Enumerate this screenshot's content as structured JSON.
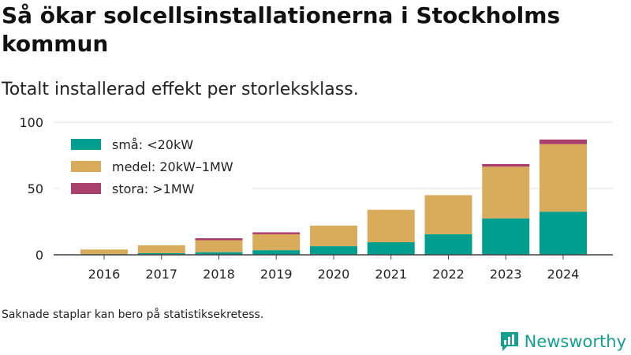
{
  "title": "Så ökar solcellsinstallationerna i Stockholms kommun",
  "subtitle": "Totalt installerad effekt per storleksklass.",
  "note": "Saknade staplar kan bero på statistiksekretess.",
  "brand": {
    "name": "Newsworthy",
    "color": "#14a08f"
  },
  "chart_data": {
    "type": "bar",
    "stacked": true,
    "categories": [
      "2016",
      "2017",
      "2018",
      "2019",
      "2020",
      "2021",
      "2022",
      "2023",
      "2024"
    ],
    "series": [
      {
        "name": "små: <20kW",
        "color": "#009e8f",
        "values": [
          0.5,
          1.2,
          2,
          3.5,
          6.5,
          9.5,
          15.5,
          27.5,
          32.5
        ]
      },
      {
        "name": "medel: 20kW–1MW",
        "color": "#d9ac5b",
        "values": [
          3.5,
          6,
          9,
          12,
          15.5,
          24.5,
          29.5,
          39,
          51
        ]
      },
      {
        "name": "stora: >1MW",
        "color": "#a8406b",
        "values": [
          0,
          0,
          1.5,
          1.5,
          0,
          0,
          0,
          2,
          3.5
        ]
      }
    ],
    "yticks": [
      0,
      50,
      100
    ],
    "ylim": [
      0,
      100
    ],
    "grid": true,
    "legend_position": "top-left"
  }
}
